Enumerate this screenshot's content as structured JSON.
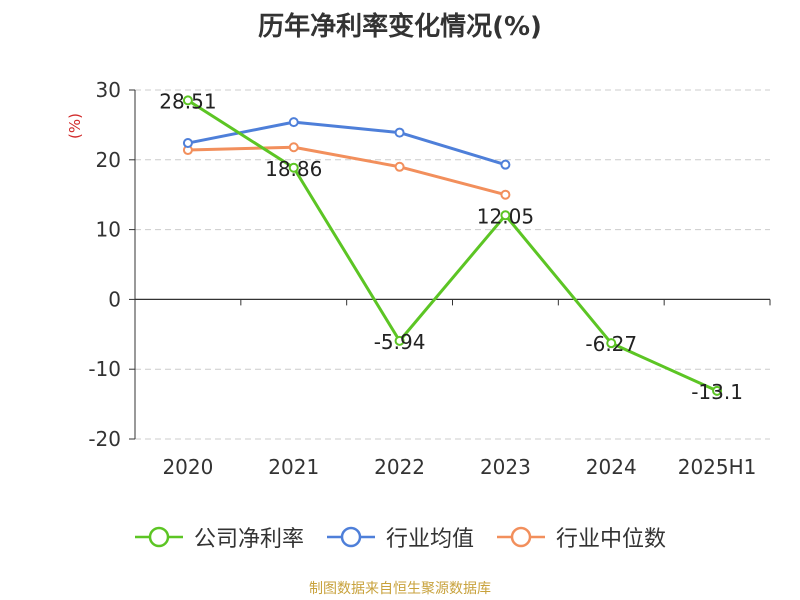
{
  "chart_data": {
    "type": "line",
    "title": "历年净利率变化情况(%)",
    "ylabel": "(%)",
    "xlabel": "",
    "categories": [
      "2020",
      "2021",
      "2022",
      "2023",
      "2024",
      "2025H1"
    ],
    "ylim": [
      -20,
      30
    ],
    "yticks": [
      30,
      20,
      10,
      0,
      -10,
      -20
    ],
    "grid": true,
    "legend_position": "bottom",
    "series": [
      {
        "name": "公司净利率",
        "color": "#5cc524",
        "values": [
          28.51,
          18.86,
          -5.94,
          12.05,
          -6.27,
          -13.1
        ],
        "labels": [
          "28.51",
          "18.86",
          "-5.94",
          "12.05",
          "-6.27",
          "-13.1"
        ]
      },
      {
        "name": "行业均值",
        "color": "#4e7fd9",
        "values": [
          22.4,
          25.4,
          23.9,
          19.3,
          null,
          null
        ]
      },
      {
        "name": "行业中位数",
        "color": "#f28f5c",
        "values": [
          21.4,
          21.8,
          19.0,
          15.0,
          null,
          null
        ]
      }
    ]
  },
  "footer": {
    "source": "制图数据来自恒生聚源数据库"
  }
}
